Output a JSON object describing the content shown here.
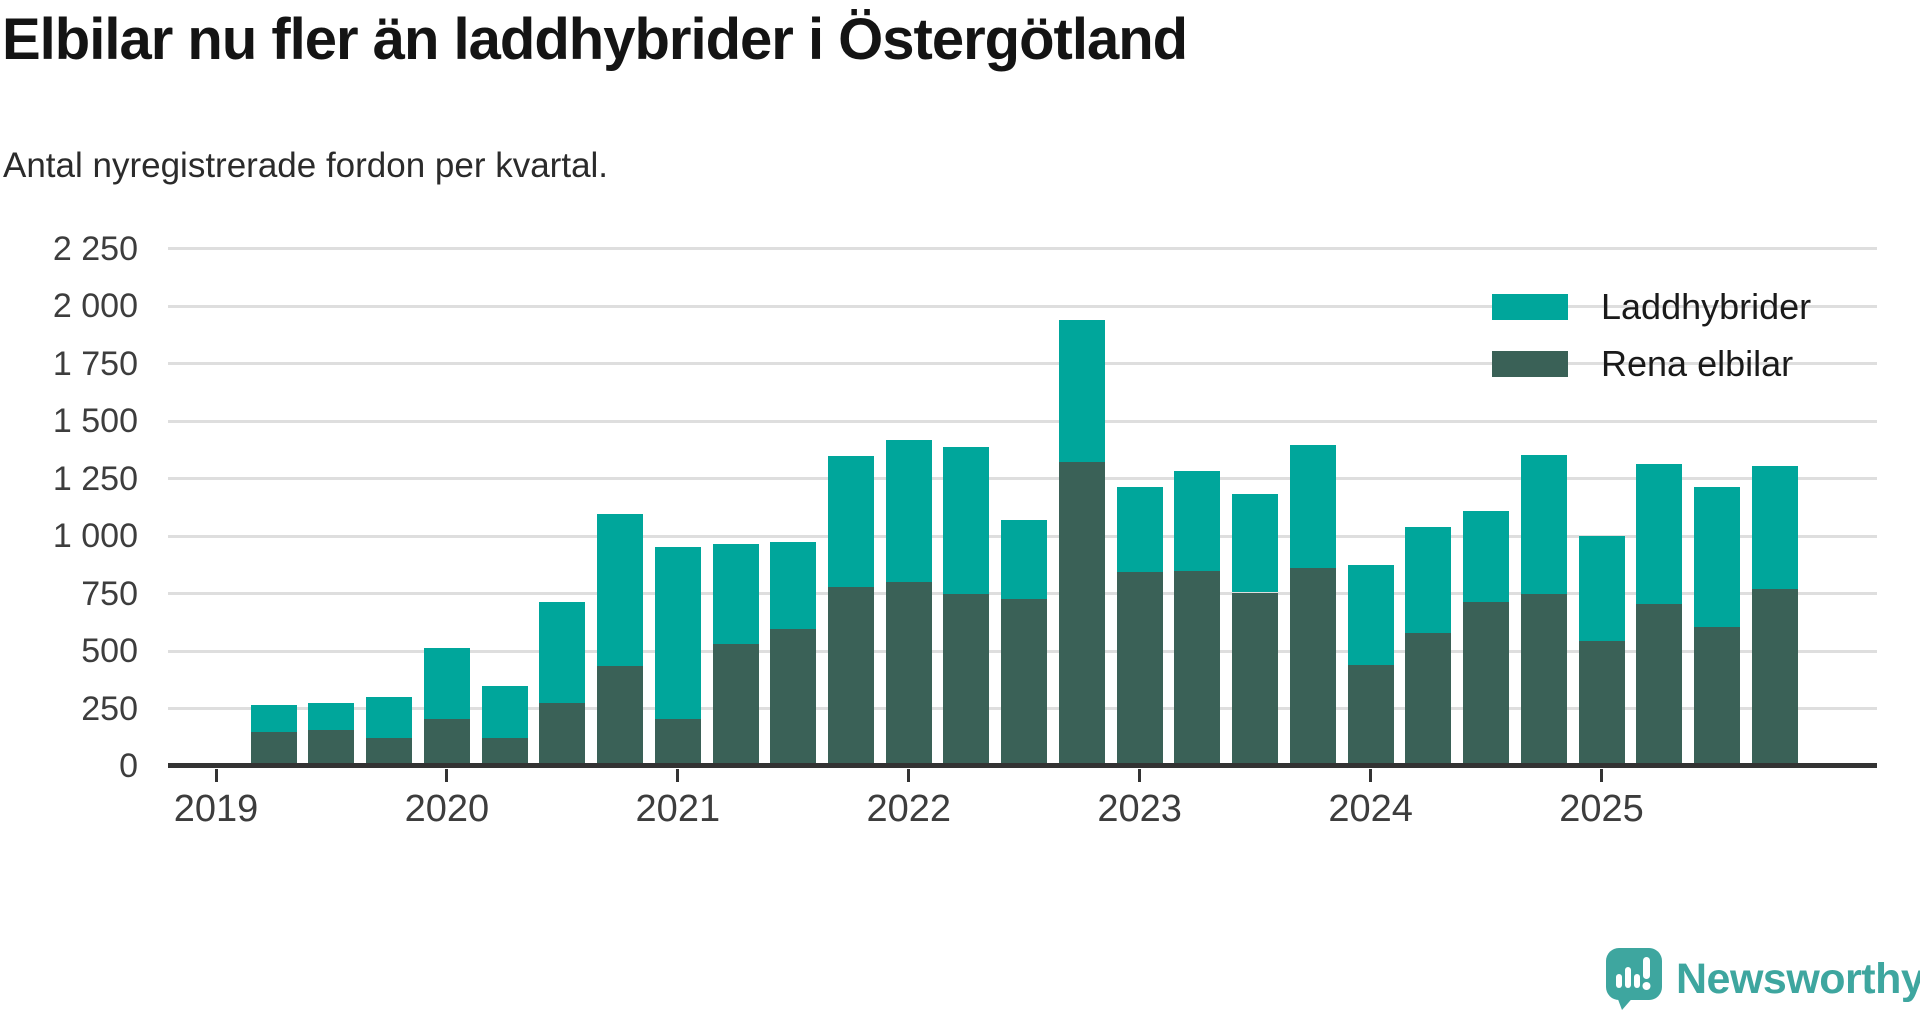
{
  "title": "Elbilar nu fler än laddhybrider i Östergötland",
  "subtitle": "Antal nyregistrerade fordon per kvartal.",
  "legend": [
    {
      "label": "Laddhybrider",
      "color": "#00a69b"
    },
    {
      "label": "Rena elbilar",
      "color": "#3a6157"
    }
  ],
  "brand": {
    "name": "Newsworthy",
    "color": "#3ea69f"
  },
  "chart_data": {
    "type": "bar",
    "stacked": true,
    "title": "Elbilar nu fler än laddhybrider i Östergötland",
    "subtitle": "Antal nyregistrerade fordon per kvartal.",
    "grid": true,
    "legend_position": "top-right",
    "ylim": [
      0,
      2250
    ],
    "y_tick_values": [
      0,
      250,
      500,
      750,
      1000,
      1250,
      1500,
      1750,
      2000,
      2250
    ],
    "y_tick_labels": [
      "0",
      "250",
      "500",
      "750",
      "1 000",
      "1 250",
      "1 500",
      "1 750",
      "2 000",
      "2 250"
    ],
    "x_tick_labels": [
      "2019",
      "2020",
      "2021",
      "2022",
      "2023",
      "2024",
      "2025"
    ],
    "categories": [
      "2019Q2",
      "2019Q3",
      "2019Q4",
      "2020Q1",
      "2020Q2",
      "2020Q3",
      "2020Q4",
      "2021Q1",
      "2021Q2",
      "2021Q3",
      "2021Q4",
      "2022Q1",
      "2022Q2",
      "2022Q3",
      "2022Q4",
      "2023Q1",
      "2023Q2",
      "2023Q3",
      "2023Q4",
      "2024Q1",
      "2024Q2",
      "2024Q3",
      "2024Q4",
      "2025Q1",
      "2025Q2",
      "2025Q3",
      "2025Q4"
    ],
    "series": [
      {
        "name": "Rena elbilar",
        "color": "#3a6157",
        "values": [
          150,
          155,
          120,
          205,
          120,
          275,
          435,
          205,
          530,
          595,
          780,
          800,
          750,
          725,
          1325,
          845,
          850,
          755,
          860,
          440,
          580,
          715,
          750,
          545,
          705,
          605,
          770
        ]
      },
      {
        "name": "Laddhybrider",
        "color": "#00a69b",
        "values": [
          115,
          120,
          180,
          310,
          230,
          440,
          660,
          750,
          435,
          380,
          570,
          620,
          640,
          345,
          615,
          370,
          435,
          430,
          535,
          435,
          460,
          395,
          605,
          455,
          610,
          610,
          535
        ]
      }
    ]
  }
}
